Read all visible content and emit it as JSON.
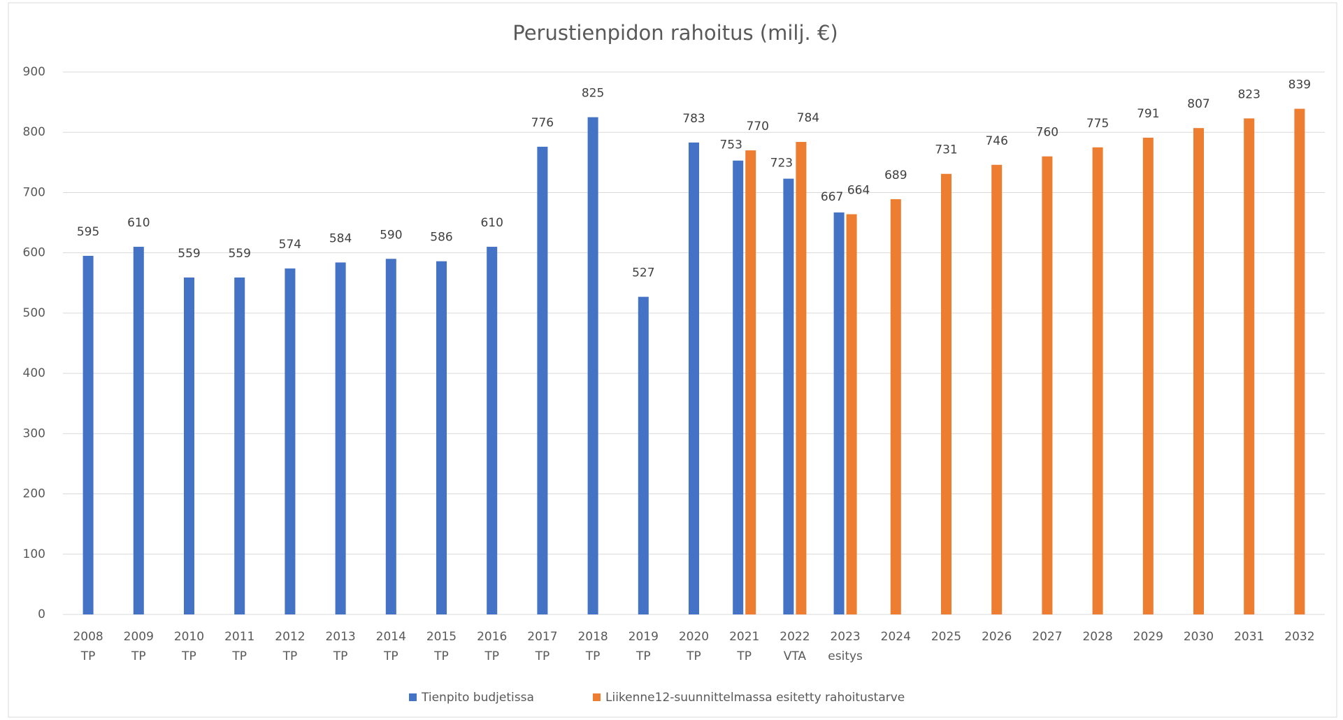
{
  "chart_data": {
    "type": "bar",
    "title": "Perustienpidon rahoitus (milj. €)",
    "categories": [
      [
        "2008",
        "TP"
      ],
      [
        "2009",
        "TP"
      ],
      [
        "2010",
        "TP"
      ],
      [
        "2011",
        "TP"
      ],
      [
        "2012",
        "TP"
      ],
      [
        "2013",
        "TP"
      ],
      [
        "2014",
        "TP"
      ],
      [
        "2015",
        "TP"
      ],
      [
        "2016",
        "TP"
      ],
      [
        "2017",
        "TP"
      ],
      [
        "2018",
        "TP"
      ],
      [
        "2019",
        "TP"
      ],
      [
        "2020",
        "TP"
      ],
      [
        "2021",
        "TP"
      ],
      [
        "2022",
        "VTA"
      ],
      [
        "2023",
        "esitys"
      ],
      [
        "2024"
      ],
      [
        "2025"
      ],
      [
        "2026"
      ],
      [
        "2027"
      ],
      [
        "2028"
      ],
      [
        "2029"
      ],
      [
        "2030"
      ],
      [
        "2031"
      ],
      [
        "2032"
      ]
    ],
    "series": [
      {
        "name": "Tienpito budjetissa",
        "color": "#4472c4",
        "values": [
          595,
          610,
          559,
          559,
          574,
          584,
          590,
          586,
          610,
          776,
          825,
          527,
          783,
          753,
          723,
          667,
          null,
          null,
          null,
          null,
          null,
          null,
          null,
          null,
          null
        ]
      },
      {
        "name": "Liikenne12-suunnittelmassa esitetty rahoitustarve",
        "color": "#ed7d31",
        "values": [
          null,
          null,
          null,
          null,
          null,
          null,
          null,
          null,
          null,
          null,
          null,
          null,
          null,
          770,
          784,
          664,
          689,
          731,
          746,
          760,
          775,
          791,
          807,
          823,
          839
        ]
      }
    ],
    "ylim": [
      0,
      900
    ],
    "yticks": [
      0,
      100,
      200,
      300,
      400,
      500,
      600,
      700,
      800,
      900
    ],
    "grid": true,
    "legend": "bottom"
  }
}
